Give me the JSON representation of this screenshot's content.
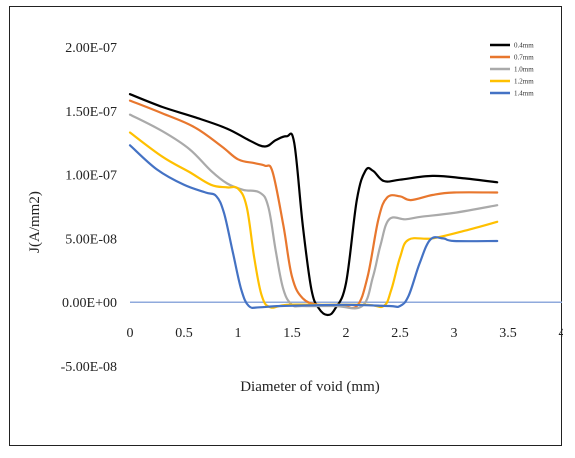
{
  "chart_data": {
    "type": "line",
    "title": "",
    "xlabel": "Diameter of void (mm)",
    "ylabel": "J(A/mm2)",
    "xlim": [
      0,
      4
    ],
    "ylim": [
      -5e-08,
      2e-07
    ],
    "x_ticks": [
      0,
      0.5,
      1,
      1.5,
      2,
      2.5,
      3,
      3.5,
      4
    ],
    "x_tick_labels": [
      "0",
      "0.5",
      "1",
      "1.5",
      "2",
      "2.5",
      "3",
      "3.5",
      "4"
    ],
    "y_ticks": [
      -5e-08,
      0,
      5e-08,
      1e-07,
      1.5e-07,
      2e-07
    ],
    "y_tick_labels": [
      "-5.00E-08",
      "0.00E+00",
      "5.00E-08",
      "1.00E-07",
      "1.50E-07",
      "2.00E-07"
    ],
    "grid": false,
    "zero_line": true,
    "legend_position": "top-right",
    "series": [
      {
        "name": "0.4mm",
        "color": "#000000",
        "points": [
          [
            0,
            1.63e-07
          ],
          [
            0.3,
            1.53e-07
          ],
          [
            0.6,
            1.45e-07
          ],
          [
            0.9,
            1.36e-07
          ],
          [
            1.1,
            1.27e-07
          ],
          [
            1.25,
            1.22e-07
          ],
          [
            1.35,
            1.27e-07
          ],
          [
            1.45,
            1.3e-07
          ],
          [
            1.52,
            1.25e-07
          ],
          [
            1.6,
            6e-08
          ],
          [
            1.68,
            1e-08
          ],
          [
            1.75,
            -5e-09
          ],
          [
            1.83,
            -1e-08
          ],
          [
            1.9,
            -5e-09
          ],
          [
            2.0,
            1.5e-08
          ],
          [
            2.1,
            8e-08
          ],
          [
            2.18,
            1.03e-07
          ],
          [
            2.25,
            1.03e-07
          ],
          [
            2.35,
            9.5e-08
          ],
          [
            2.5,
            9.6e-08
          ],
          [
            2.8,
            9.9e-08
          ],
          [
            3.1,
            9.7e-08
          ],
          [
            3.4,
            9.4e-08
          ]
        ]
      },
      {
        "name": "0.7mm",
        "color": "#e8772e",
        "points": [
          [
            0,
            1.58e-07
          ],
          [
            0.3,
            1.48e-07
          ],
          [
            0.6,
            1.37e-07
          ],
          [
            0.85,
            1.22e-07
          ],
          [
            1.0,
            1.12e-07
          ],
          [
            1.15,
            1.09e-07
          ],
          [
            1.25,
            1.07e-07
          ],
          [
            1.32,
            1.02e-07
          ],
          [
            1.42,
            6e-08
          ],
          [
            1.5,
            2e-08
          ],
          [
            1.6,
            3e-09
          ],
          [
            1.75,
            -2e-09
          ],
          [
            1.95,
            -2e-09
          ],
          [
            2.1,
            -3e-09
          ],
          [
            2.2,
            2e-08
          ],
          [
            2.3,
            6.5e-08
          ],
          [
            2.38,
            8.2e-08
          ],
          [
            2.5,
            8.3e-08
          ],
          [
            2.6,
            8e-08
          ],
          [
            2.8,
            8.4e-08
          ],
          [
            3.0,
            8.6e-08
          ],
          [
            3.4,
            8.6e-08
          ]
        ]
      },
      {
        "name": "1.0mm",
        "color": "#aaaaaa",
        "points": [
          [
            0,
            1.47e-07
          ],
          [
            0.3,
            1.34e-07
          ],
          [
            0.55,
            1.2e-07
          ],
          [
            0.75,
            1.03e-07
          ],
          [
            0.9,
            9.3e-08
          ],
          [
            1.05,
            8.8e-08
          ],
          [
            1.2,
            8.6e-08
          ],
          [
            1.28,
            7.5e-08
          ],
          [
            1.35,
            4e-08
          ],
          [
            1.42,
            1e-08
          ],
          [
            1.5,
            -2e-09
          ],
          [
            1.6,
            -3e-09
          ],
          [
            1.9,
            -3e-09
          ],
          [
            2.15,
            -3e-09
          ],
          [
            2.25,
            2e-08
          ],
          [
            2.32,
            4.5e-08
          ],
          [
            2.4,
            6.5e-08
          ],
          [
            2.55,
            6.5e-08
          ],
          [
            2.7,
            6.7e-08
          ],
          [
            3.0,
            7e-08
          ],
          [
            3.4,
            7.6e-08
          ]
        ]
      },
      {
        "name": "1.2mm",
        "color": "#ffc000",
        "points": [
          [
            0,
            1.33e-07
          ],
          [
            0.3,
            1.14e-07
          ],
          [
            0.55,
            1.02e-07
          ],
          [
            0.75,
            9.2e-08
          ],
          [
            0.9,
            9e-08
          ],
          [
            1.0,
            8.9e-08
          ],
          [
            1.08,
            7.5e-08
          ],
          [
            1.15,
            3.5e-08
          ],
          [
            1.22,
            5e-09
          ],
          [
            1.3,
            -4e-09
          ],
          [
            1.45,
            -2e-09
          ],
          [
            1.8,
            -2e-09
          ],
          [
            2.2,
            -2e-09
          ],
          [
            2.35,
            -3e-09
          ],
          [
            2.42,
            1e-08
          ],
          [
            2.5,
            3.5e-08
          ],
          [
            2.58,
            4.9e-08
          ],
          [
            2.8,
            5e-08
          ],
          [
            3.1,
            5.6e-08
          ],
          [
            3.4,
            6.3e-08
          ]
        ]
      },
      {
        "name": "1.4mm",
        "color": "#4472c4",
        "points": [
          [
            0,
            1.23e-07
          ],
          [
            0.25,
            1.04e-07
          ],
          [
            0.5,
            9.2e-08
          ],
          [
            0.7,
            8.6e-08
          ],
          [
            0.8,
            8.3e-08
          ],
          [
            0.87,
            7e-08
          ],
          [
            0.95,
            4e-08
          ],
          [
            1.03,
            1e-08
          ],
          [
            1.1,
            -3e-09
          ],
          [
            1.2,
            -4e-09
          ],
          [
            1.4,
            -3e-09
          ],
          [
            2.0,
            -2e-09
          ],
          [
            2.4,
            -3e-09
          ],
          [
            2.5,
            -3e-09
          ],
          [
            2.58,
            5e-09
          ],
          [
            2.68,
            3e-08
          ],
          [
            2.78,
            4.9e-08
          ],
          [
            2.9,
            5e-08
          ],
          [
            3.0,
            4.8e-08
          ],
          [
            3.4,
            4.8e-08
          ]
        ]
      }
    ]
  }
}
